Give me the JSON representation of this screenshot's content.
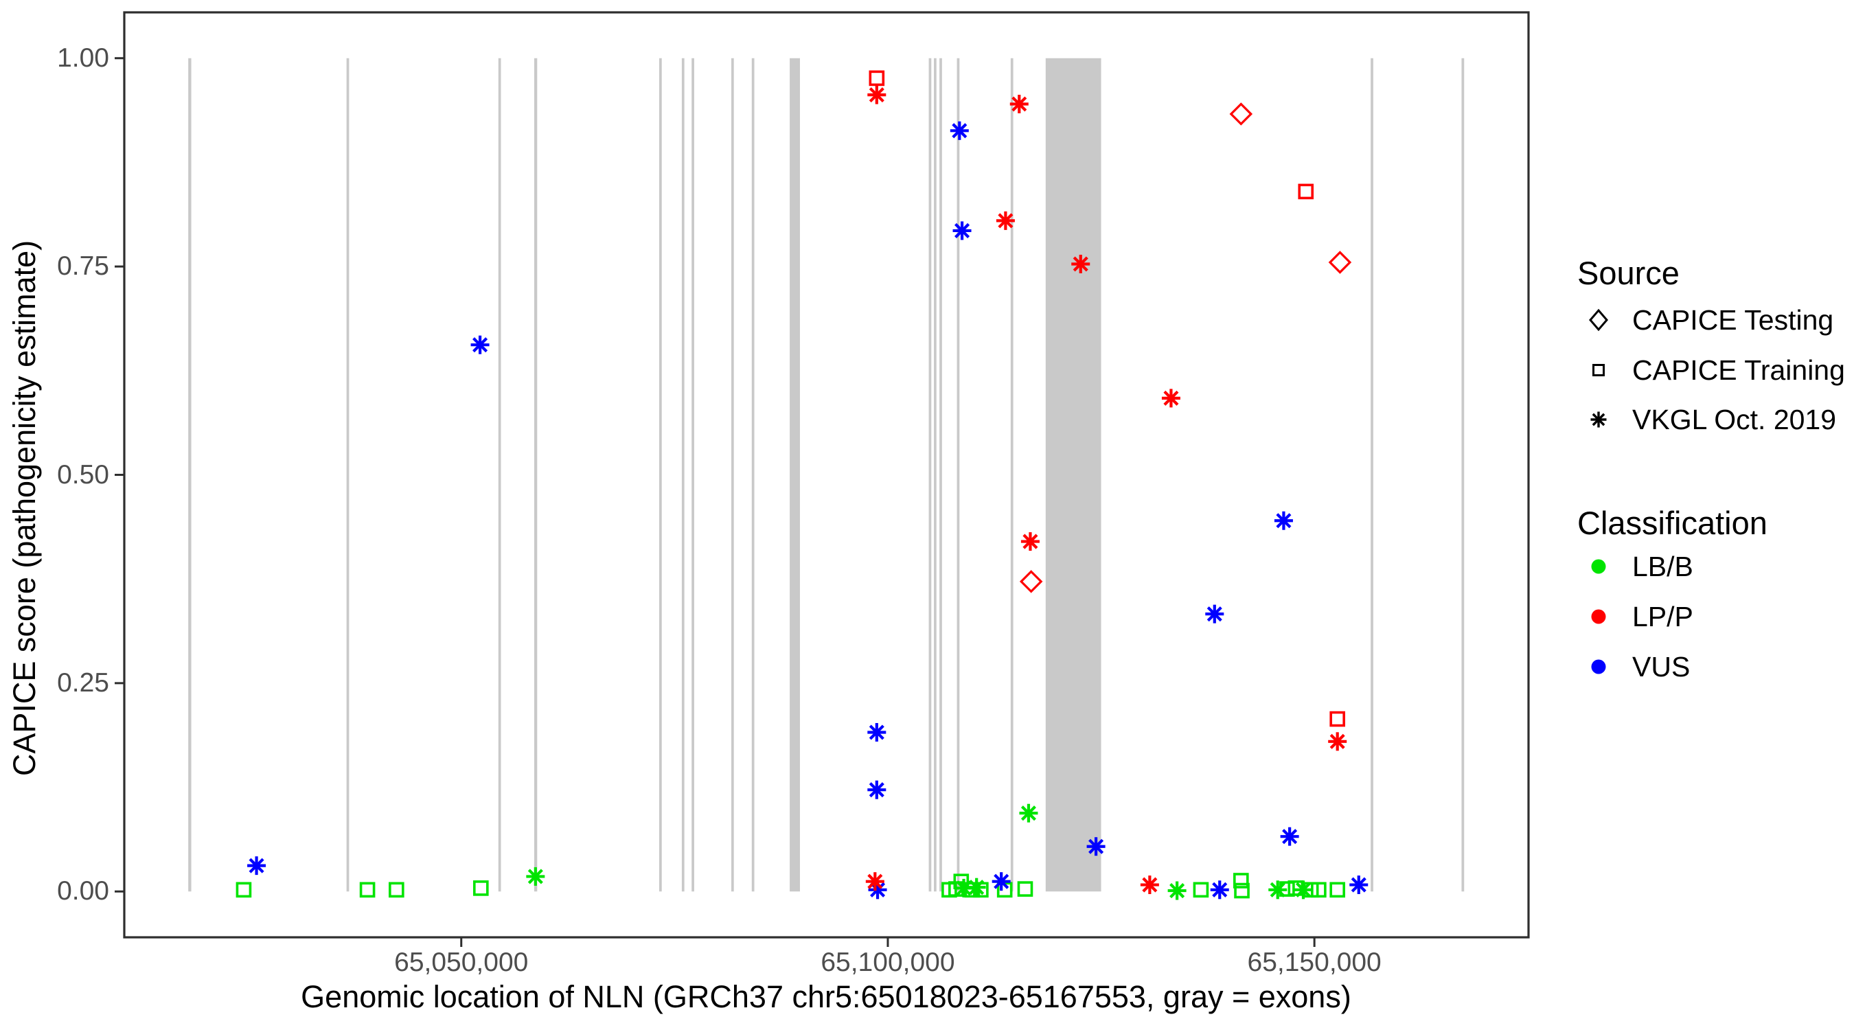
{
  "axes": {
    "x": {
      "title": "Genomic location of NLN (GRCh37 chr5:65018023-65167553, gray = exons)",
      "domain": [
        65010500,
        65175100
      ],
      "ticks": [
        {
          "value": 65050000,
          "label": "65,050,000"
        },
        {
          "value": 65100000,
          "label": "65,100,000"
        },
        {
          "value": 65150000,
          "label": "65,150,000"
        }
      ]
    },
    "y": {
      "title": "CAPICE score (pathogenicity estimate)",
      "domain": [
        -0.055,
        1.055
      ],
      "ticks": [
        {
          "value": 0.0,
          "label": "0.00"
        },
        {
          "value": 0.25,
          "label": "0.25"
        },
        {
          "value": 0.5,
          "label": "0.50"
        },
        {
          "value": 0.75,
          "label": "0.75"
        },
        {
          "value": 1.0,
          "label": "1.00"
        }
      ]
    }
  },
  "legend": {
    "source": {
      "title": "Source",
      "items": [
        {
          "shape": "diamond",
          "label": "CAPICE Testing"
        },
        {
          "shape": "square",
          "label": "CAPICE Training"
        },
        {
          "shape": "asterisk",
          "label": "VKGL Oct. 2019"
        }
      ]
    },
    "classification": {
      "title": "Classification",
      "items": [
        {
          "label": "LB/B",
          "color": "#00E400"
        },
        {
          "label": "LP/P",
          "color": "#FF0000"
        },
        {
          "label": "VUS",
          "color": "#0000FF"
        }
      ]
    }
  },
  "colors": {
    "LB/B": "#00E400",
    "LP/P": "#FF0000",
    "VUS": "#0000FF",
    "exon": "#C9C9C9",
    "axis_line": "#2E2E2E",
    "tick_text": "#4D4D4D"
  },
  "chart_data": {
    "type": "scatter",
    "xlabel": "Genomic location of NLN (GRCh37 chr5:65018023-65167553, gray = exons)",
    "ylabel": "CAPICE score (pathogenicity estimate)",
    "xlim": [
      65010500,
      65175100
    ],
    "ylim": [
      -0.055,
      1.055
    ],
    "grid": false,
    "legend_position": "right",
    "gene": {
      "name": "NLN",
      "assembly": "GRCh37",
      "chromosome": "chr5",
      "start": 65018023,
      "end": 65167553
    },
    "shape_meaning": {
      "diamond": "CAPICE Testing",
      "square": "CAPICE Training",
      "asterisk": "VKGL Oct. 2019"
    },
    "exons": [
      [
        65018000,
        65018350
      ],
      [
        65036550,
        65036850
      ],
      [
        65054350,
        65054650
      ],
      [
        65058550,
        65058900
      ],
      [
        65073200,
        65073500
      ],
      [
        65075850,
        65076150
      ],
      [
        65077000,
        65077300
      ],
      [
        65081650,
        65081950
      ],
      [
        65084050,
        65084350
      ],
      [
        65088500,
        65089700
      ],
      [
        65104800,
        65105100
      ],
      [
        65105400,
        65105700
      ],
      [
        65106050,
        65106350
      ],
      [
        65108100,
        65108400
      ],
      [
        65114400,
        65114700
      ],
      [
        65118500,
        65125000
      ],
      [
        65156600,
        65156900
      ],
      [
        65167250,
        65167553
      ]
    ],
    "points": [
      {
        "pos": 65024500,
        "score": 0.002,
        "shape": "square",
        "source": "CAPICE Training",
        "classification": "LB/B"
      },
      {
        "pos": 65039000,
        "score": 0.002,
        "shape": "square",
        "source": "CAPICE Training",
        "classification": "LB/B"
      },
      {
        "pos": 65042400,
        "score": 0.002,
        "shape": "square",
        "source": "CAPICE Training",
        "classification": "LB/B"
      },
      {
        "pos": 65052300,
        "score": 0.004,
        "shape": "square",
        "source": "CAPICE Training",
        "classification": "LB/B"
      },
      {
        "pos": 65058700,
        "score": 0.018,
        "shape": "asterisk",
        "source": "VKGL Oct. 2019",
        "classification": "LB/B"
      },
      {
        "pos": 65107200,
        "score": 0.002,
        "shape": "square",
        "source": "CAPICE Training",
        "classification": "LB/B"
      },
      {
        "pos": 65108000,
        "score": 0.003,
        "shape": "square",
        "source": "CAPICE Training",
        "classification": "LB/B"
      },
      {
        "pos": 65108600,
        "score": 0.012,
        "shape": "square",
        "source": "CAPICE Training",
        "classification": "LB/B"
      },
      {
        "pos": 65108900,
        "score": 0.004,
        "shape": "asterisk",
        "source": "VKGL Oct. 2019",
        "classification": "LB/B"
      },
      {
        "pos": 65109900,
        "score": 0.002,
        "shape": "square",
        "source": "CAPICE Training",
        "classification": "LB/B"
      },
      {
        "pos": 65110400,
        "score": 0.005,
        "shape": "asterisk",
        "source": "VKGL Oct. 2019",
        "classification": "LB/B"
      },
      {
        "pos": 65110900,
        "score": 0.002,
        "shape": "square",
        "source": "CAPICE Training",
        "classification": "LB/B"
      },
      {
        "pos": 65113700,
        "score": 0.002,
        "shape": "square",
        "source": "CAPICE Training",
        "classification": "LB/B"
      },
      {
        "pos": 65116100,
        "score": 0.003,
        "shape": "square",
        "source": "CAPICE Training",
        "classification": "LB/B"
      },
      {
        "pos": 65116500,
        "score": 0.094,
        "shape": "asterisk",
        "source": "VKGL Oct. 2019",
        "classification": "LB/B"
      },
      {
        "pos": 65133900,
        "score": 0.001,
        "shape": "asterisk",
        "source": "VKGL Oct. 2019",
        "classification": "LB/B"
      },
      {
        "pos": 65136700,
        "score": 0.002,
        "shape": "square",
        "source": "CAPICE Training",
        "classification": "LB/B"
      },
      {
        "pos": 65141400,
        "score": 0.013,
        "shape": "square",
        "source": "CAPICE Training",
        "classification": "LB/B"
      },
      {
        "pos": 65141500,
        "score": 0.001,
        "shape": "square",
        "source": "CAPICE Training",
        "classification": "LB/B"
      },
      {
        "pos": 65145700,
        "score": 0.002,
        "shape": "asterisk",
        "source": "VKGL Oct. 2019",
        "classification": "LB/B"
      },
      {
        "pos": 65146800,
        "score": 0.003,
        "shape": "square",
        "source": "CAPICE Training",
        "classification": "LB/B"
      },
      {
        "pos": 65147800,
        "score": 0.004,
        "shape": "square",
        "source": "CAPICE Training",
        "classification": "LB/B"
      },
      {
        "pos": 65148700,
        "score": 0.002,
        "shape": "asterisk",
        "source": "VKGL Oct. 2019",
        "classification": "LB/B"
      },
      {
        "pos": 65149600,
        "score": 0.002,
        "shape": "square",
        "source": "CAPICE Training",
        "classification": "LB/B"
      },
      {
        "pos": 65150500,
        "score": 0.002,
        "shape": "square",
        "source": "CAPICE Training",
        "classification": "LB/B"
      },
      {
        "pos": 65152700,
        "score": 0.002,
        "shape": "square",
        "source": "CAPICE Training",
        "classification": "LB/B"
      },
      {
        "pos": 65026000,
        "score": 0.031,
        "shape": "asterisk",
        "source": "VKGL Oct. 2019",
        "classification": "VUS"
      },
      {
        "pos": 65052200,
        "score": 0.656,
        "shape": "asterisk",
        "source": "VKGL Oct. 2019",
        "classification": "VUS"
      },
      {
        "pos": 65098700,
        "score": 0.191,
        "shape": "asterisk",
        "source": "VKGL Oct. 2019",
        "classification": "VUS"
      },
      {
        "pos": 65098700,
        "score": 0.122,
        "shape": "asterisk",
        "source": "VKGL Oct. 2019",
        "classification": "VUS"
      },
      {
        "pos": 65098800,
        "score": 0.002,
        "shape": "asterisk",
        "source": "VKGL Oct. 2019",
        "classification": "VUS"
      },
      {
        "pos": 65108400,
        "score": 0.913,
        "shape": "asterisk",
        "source": "VKGL Oct. 2019",
        "classification": "VUS"
      },
      {
        "pos": 65108700,
        "score": 0.793,
        "shape": "asterisk",
        "source": "VKGL Oct. 2019",
        "classification": "VUS"
      },
      {
        "pos": 65113300,
        "score": 0.012,
        "shape": "asterisk",
        "source": "VKGL Oct. 2019",
        "classification": "VUS"
      },
      {
        "pos": 65124400,
        "score": 0.054,
        "shape": "asterisk",
        "source": "VKGL Oct. 2019",
        "classification": "VUS"
      },
      {
        "pos": 65138300,
        "score": 0.333,
        "shape": "asterisk",
        "source": "VKGL Oct. 2019",
        "classification": "VUS"
      },
      {
        "pos": 65138900,
        "score": 0.002,
        "shape": "asterisk",
        "source": "VKGL Oct. 2019",
        "classification": "VUS"
      },
      {
        "pos": 65146400,
        "score": 0.445,
        "shape": "asterisk",
        "source": "VKGL Oct. 2019",
        "classification": "VUS"
      },
      {
        "pos": 65147100,
        "score": 0.066,
        "shape": "asterisk",
        "source": "VKGL Oct. 2019",
        "classification": "VUS"
      },
      {
        "pos": 65155200,
        "score": 0.008,
        "shape": "asterisk",
        "source": "VKGL Oct. 2019",
        "classification": "VUS"
      },
      {
        "pos": 65098500,
        "score": 0.012,
        "shape": "asterisk",
        "source": "VKGL Oct. 2019",
        "classification": "LP/P"
      },
      {
        "pos": 65098700,
        "score": 0.956,
        "shape": "asterisk",
        "source": "VKGL Oct. 2019",
        "classification": "LP/P"
      },
      {
        "pos": 65098700,
        "score": 0.976,
        "shape": "square",
        "source": "CAPICE Training",
        "classification": "LP/P"
      },
      {
        "pos": 65113800,
        "score": 0.805,
        "shape": "asterisk",
        "source": "VKGL Oct. 2019",
        "classification": "LP/P"
      },
      {
        "pos": 65115400,
        "score": 0.945,
        "shape": "asterisk",
        "source": "VKGL Oct. 2019",
        "classification": "LP/P"
      },
      {
        "pos": 65116700,
        "score": 0.42,
        "shape": "asterisk",
        "source": "VKGL Oct. 2019",
        "classification": "LP/P"
      },
      {
        "pos": 65116800,
        "score": 0.372,
        "shape": "diamond",
        "source": "CAPICE Testing",
        "classification": "LP/P"
      },
      {
        "pos": 65122600,
        "score": 0.753,
        "shape": "asterisk",
        "source": "VKGL Oct. 2019",
        "classification": "LP/P"
      },
      {
        "pos": 65130700,
        "score": 0.008,
        "shape": "asterisk",
        "source": "VKGL Oct. 2019",
        "classification": "LP/P"
      },
      {
        "pos": 65133200,
        "score": 0.592,
        "shape": "asterisk",
        "source": "VKGL Oct. 2019",
        "classification": "LP/P"
      },
      {
        "pos": 65141400,
        "score": 0.933,
        "shape": "diamond",
        "source": "CAPICE Testing",
        "classification": "LP/P"
      },
      {
        "pos": 65149000,
        "score": 0.84,
        "shape": "square",
        "source": "CAPICE Training",
        "classification": "LP/P"
      },
      {
        "pos": 65152700,
        "score": 0.207,
        "shape": "square",
        "source": "CAPICE Training",
        "classification": "LP/P"
      },
      {
        "pos": 65152700,
        "score": 0.18,
        "shape": "asterisk",
        "source": "VKGL Oct. 2019",
        "classification": "LP/P"
      },
      {
        "pos": 65153000,
        "score": 0.755,
        "shape": "diamond",
        "source": "CAPICE Testing",
        "classification": "LP/P"
      }
    ]
  }
}
